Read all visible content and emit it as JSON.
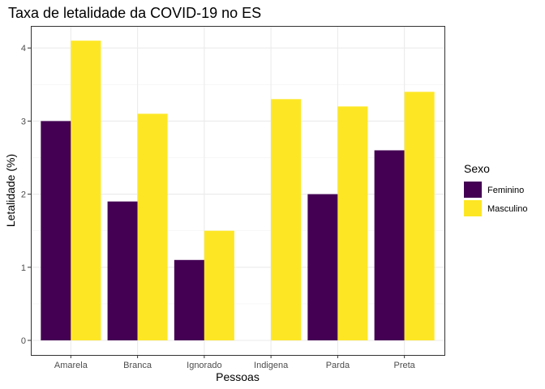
{
  "chart_data": {
    "type": "bar",
    "title": "Taxa de letalidade da COVID-19 no ES",
    "xlabel": "Pessoas",
    "ylabel": "Letalidade (%)",
    "categories": [
      "Amarela",
      "Branca",
      "Ignorado",
      "Indigena",
      "Parda",
      "Preta"
    ],
    "series": [
      {
        "name": "Feminino",
        "values": [
          3.0,
          1.9,
          1.1,
          null,
          2.0,
          2.6
        ],
        "color": "#440154"
      },
      {
        "name": "Masculino",
        "values": [
          4.1,
          3.1,
          1.5,
          3.3,
          3.2,
          3.4
        ],
        "color": "#FDE725"
      }
    ],
    "ylim": [
      0,
      4.3
    ],
    "yticks": [
      0,
      1,
      2,
      3,
      4
    ],
    "grid": true,
    "legend": {
      "title": "Sexo",
      "position": "right"
    }
  }
}
